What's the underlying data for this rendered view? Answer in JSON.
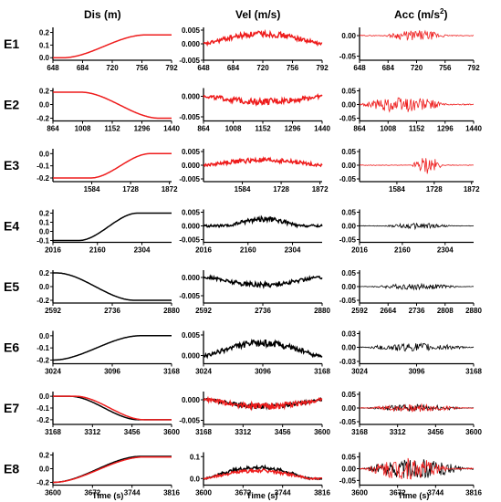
{
  "column_titles": {
    "dis": "Dis (m)",
    "vel": "Vel (m/s)",
    "acc_prefix": "Acc (m/s",
    "acc_sup": "2",
    "acc_suffix": ")"
  },
  "x_axis_label": "Time (s)",
  "colors": {
    "red": "#ee1c1c",
    "black": "#000000"
  },
  "chart_data": [
    {
      "row": "E1",
      "type": "line",
      "colors": [
        "red"
      ],
      "xticks": [
        648,
        684,
        720,
        756,
        792
      ],
      "xlim": [
        648,
        792
      ],
      "panels": [
        {
          "kind": "dis",
          "yticks": [
            "0.2",
            "0.1",
            "0.0"
          ],
          "ylim": [
            -0.02,
            0.24
          ],
          "series": [
            {
              "color": "red",
              "shape": "ramp",
              "x0": 660,
              "x1": 760,
              "y0": 0.0,
              "y1": 0.18
            }
          ]
        },
        {
          "kind": "vel",
          "yticks": [
            "0.005",
            "0.000",
            "-0.005"
          ],
          "ylim": [
            -0.005,
            0.005
          ],
          "series": [
            {
              "color": "red",
              "shape": "bump",
              "x0": 652,
              "x1": 788,
              "amp": 0.003,
              "noise": 0.0009
            }
          ]
        },
        {
          "kind": "acc",
          "yticks": [
            "0.00",
            "-0.05"
          ],
          "ylim": [
            -0.06,
            0.02
          ],
          "series": [
            {
              "color": "red",
              "shape": "burst",
              "x0": 680,
              "x1": 760,
              "amp": 0.012,
              "base": 0.001
            }
          ]
        }
      ]
    },
    {
      "row": "E2",
      "type": "line",
      "colors": [
        "red"
      ],
      "xticks": [
        864,
        1008,
        1152,
        1296,
        1440
      ],
      "xlim": [
        864,
        1440
      ],
      "panels": [
        {
          "kind": "dis",
          "yticks": [
            "0.2",
            "0.0",
            "-0.2"
          ],
          "ylim": [
            -0.24,
            0.24
          ],
          "series": [
            {
              "color": "red",
              "shape": "ramp",
              "x0": 1000,
              "x1": 1380,
              "y0": 0.18,
              "y1": -0.2
            }
          ]
        },
        {
          "kind": "vel",
          "yticks": [
            "0.000",
            "-0.005"
          ],
          "ylim": [
            -0.006,
            0.002
          ],
          "series": [
            {
              "color": "red",
              "shape": "bump",
              "x0": 880,
              "x1": 1430,
              "amp": -0.0013,
              "noise": 0.0008
            }
          ]
        },
        {
          "kind": "acc",
          "yticks": [
            "0.05",
            "0.00",
            "-0.05"
          ],
          "ylim": [
            -0.06,
            0.06
          ],
          "series": [
            {
              "color": "red",
              "shape": "burst",
              "x0": 864,
              "x1": 1310,
              "amp": 0.028,
              "base": 0.002
            }
          ]
        }
      ]
    },
    {
      "row": "E3",
      "type": "line",
      "colors": [
        "red"
      ],
      "xticks": [
        1584,
        1728,
        1872
      ],
      "xlim": [
        1440,
        1880
      ],
      "panels": [
        {
          "kind": "dis",
          "yticks": [
            "0.0",
            "-0.1",
            "-0.2"
          ],
          "ylim": [
            -0.23,
            0.04
          ],
          "series": [
            {
              "color": "red",
              "shape": "ramp",
              "x0": 1580,
              "x1": 1800,
              "y0": -0.2,
              "y1": 0.0
            }
          ]
        },
        {
          "kind": "vel",
          "yticks": [
            "0.005",
            "0.000",
            "-0.005"
          ],
          "ylim": [
            -0.006,
            0.006
          ],
          "series": [
            {
              "color": "red",
              "shape": "bump",
              "x0": 1450,
              "x1": 1870,
              "amp": 0.0018,
              "noise": 0.0009
            }
          ]
        },
        {
          "kind": "acc",
          "yticks": [
            "0.05",
            "0.00",
            "-0.05"
          ],
          "ylim": [
            -0.06,
            0.06
          ],
          "series": [
            {
              "color": "red",
              "shape": "burst",
              "x0": 1640,
              "x1": 1760,
              "amp": 0.032,
              "base": 0.001
            }
          ]
        }
      ]
    },
    {
      "row": "E4",
      "type": "line",
      "colors": [
        "black"
      ],
      "xticks": [
        2016,
        2160,
        2304
      ],
      "xlim": [
        2016,
        2400
      ],
      "panels": [
        {
          "kind": "dis",
          "yticks": [
            "0.2",
            "0.1",
            "0.0",
            "-0.1"
          ],
          "ylim": [
            -0.12,
            0.24
          ],
          "series": [
            {
              "color": "black",
              "shape": "ramp",
              "x0": 2100,
              "x1": 2290,
              "y0": -0.1,
              "y1": 0.2
            }
          ]
        },
        {
          "kind": "vel",
          "yticks": [
            "0.005",
            "0.000",
            "-0.005"
          ],
          "ylim": [
            -0.006,
            0.006
          ],
          "series": [
            {
              "color": "black",
              "shape": "bump",
              "x0": 2100,
              "x1": 2320,
              "amp": 0.0025,
              "noise": 0.0009
            }
          ]
        },
        {
          "kind": "acc",
          "yticks": [
            "0.05",
            "0.00",
            "-0.05"
          ],
          "ylim": [
            -0.06,
            0.06
          ],
          "series": [
            {
              "color": "black",
              "shape": "burst",
              "x0": 2100,
              "x1": 2330,
              "amp": 0.01,
              "base": 0.001
            }
          ]
        }
      ]
    },
    {
      "row": "E5",
      "type": "line",
      "colors": [
        "black"
      ],
      "xticks": [
        2592,
        2736,
        2880
      ],
      "xlim": [
        2592,
        2880
      ],
      "acc_xticks": [
        2592,
        2664,
        2736,
        2808,
        2880
      ],
      "acc_xlim": [
        2592,
        2880
      ],
      "panels": [
        {
          "kind": "dis",
          "yticks": [
            "0.2",
            "0.0",
            "-0.2"
          ],
          "ylim": [
            -0.24,
            0.24
          ],
          "series": [
            {
              "color": "black",
              "shape": "ramp",
              "x0": 2600,
              "x1": 2790,
              "y0": 0.2,
              "y1": -0.2
            }
          ]
        },
        {
          "kind": "vel",
          "yticks": [
            "0.000",
            "-0.005"
          ],
          "ylim": [
            -0.007,
            0.002
          ],
          "series": [
            {
              "color": "black",
              "shape": "bump",
              "x0": 2610,
              "x1": 2860,
              "amp": -0.002,
              "noise": 0.0007
            }
          ]
        },
        {
          "kind": "acc",
          "yticks": [
            "0.05",
            "0.00",
            "-0.05"
          ],
          "ylim": [
            -0.06,
            0.06
          ],
          "series": [
            {
              "color": "black",
              "shape": "burst",
              "x0": 2620,
              "x1": 2850,
              "amp": 0.01,
              "base": 0.001
            }
          ]
        }
      ]
    },
    {
      "row": "E6",
      "type": "line",
      "colors": [
        "black"
      ],
      "xticks": [
        3024,
        3096,
        3168
      ],
      "xlim": [
        3024,
        3168
      ],
      "panels": [
        {
          "kind": "dis",
          "yticks": [
            "0.0",
            "-0.1",
            "-0.2"
          ],
          "ylim": [
            -0.23,
            0.04
          ],
          "series": [
            {
              "color": "black",
              "shape": "ramp",
              "x0": 3024,
              "x1": 3130,
              "y0": -0.2,
              "y1": 0.0
            }
          ]
        },
        {
          "kind": "vel",
          "yticks": [
            "0.005",
            "0.000"
          ],
          "ylim": [
            -0.002,
            0.006
          ],
          "series": [
            {
              "color": "black",
              "shape": "bump",
              "x0": 3030,
              "x1": 3160,
              "amp": 0.003,
              "noise": 0.0008
            }
          ]
        },
        {
          "kind": "acc",
          "yticks": [
            "0.03",
            "0.00",
            "-0.03"
          ],
          "ylim": [
            -0.035,
            0.035
          ],
          "series": [
            {
              "color": "black",
              "shape": "burst",
              "x0": 3030,
              "x1": 3160,
              "amp": 0.008,
              "base": 0.001
            }
          ]
        }
      ]
    },
    {
      "row": "E7",
      "type": "line",
      "colors": [
        "black",
        "red"
      ],
      "xticks": [
        3168,
        3312,
        3456,
        3600
      ],
      "xlim": [
        3168,
        3600
      ],
      "panels": [
        {
          "kind": "dis",
          "yticks": [
            "0.0",
            "-0.1",
            "-0.2"
          ],
          "ylim": [
            -0.24,
            0.04
          ],
          "series": [
            {
              "color": "black",
              "shape": "ramp",
              "x0": 3230,
              "x1": 3480,
              "y0": 0.0,
              "y1": -0.2
            },
            {
              "color": "red",
              "shape": "ramp",
              "x0": 3250,
              "x1": 3500,
              "y0": 0.0,
              "y1": -0.2
            }
          ]
        },
        {
          "kind": "vel",
          "yticks": [
            "0.000",
            "-0.005"
          ],
          "ylim": [
            -0.006,
            0.002
          ],
          "series": [
            {
              "color": "black",
              "shape": "bump",
              "x0": 3190,
              "x1": 3590,
              "amp": -0.0016,
              "noise": 0.0006
            },
            {
              "color": "red",
              "shape": "bump",
              "x0": 3190,
              "x1": 3590,
              "amp": -0.0016,
              "noise": 0.0008
            }
          ]
        },
        {
          "kind": "acc",
          "yticks": [
            "0.05",
            "0.00",
            "-0.05"
          ],
          "ylim": [
            -0.06,
            0.06
          ],
          "series": [
            {
              "color": "black",
              "shape": "burst",
              "x0": 3200,
              "x1": 3560,
              "amp": 0.012,
              "base": 0.001
            },
            {
              "color": "red",
              "shape": "burst",
              "x0": 3200,
              "x1": 3560,
              "amp": 0.013,
              "base": 0.001
            }
          ]
        }
      ]
    },
    {
      "row": "E8",
      "type": "line",
      "colors": [
        "black",
        "red"
      ],
      "xticks": [
        3600,
        3672,
        3744,
        3816
      ],
      "xlim": [
        3600,
        3816
      ],
      "panels": [
        {
          "kind": "dis",
          "yticks": [
            "0.2",
            "0.0",
            "-0.2"
          ],
          "ylim": [
            -0.24,
            0.24
          ],
          "series": [
            {
              "color": "black",
              "shape": "ramp",
              "x0": 3600,
              "x1": 3760,
              "y0": -0.2,
              "y1": 0.18
            },
            {
              "color": "red",
              "shape": "ramp",
              "x0": 3600,
              "x1": 3765,
              "y0": -0.2,
              "y1": 0.17
            }
          ]
        },
        {
          "kind": "vel",
          "yticks": [
            "0.1",
            "0.0"
          ],
          "ylim": [
            -0.03,
            0.12
          ],
          "series": [
            {
              "color": "black",
              "shape": "bump",
              "x0": 3605,
              "x1": 3790,
              "amp": 0.05,
              "noise": 0.008
            },
            {
              "color": "red",
              "shape": "bump",
              "x0": 3605,
              "x1": 3790,
              "amp": 0.035,
              "noise": 0.008
            }
          ]
        },
        {
          "kind": "acc",
          "yticks": [
            "0.05",
            "0.00",
            "-0.05"
          ],
          "ylim": [
            -0.07,
            0.07
          ],
          "series": [
            {
              "color": "black",
              "shape": "burst",
              "x0": 3610,
              "x1": 3800,
              "amp": 0.04,
              "base": 0.003
            },
            {
              "color": "red",
              "shape": "burst",
              "x0": 3610,
              "x1": 3770,
              "amp": 0.045,
              "base": 0.003
            }
          ]
        }
      ]
    }
  ]
}
